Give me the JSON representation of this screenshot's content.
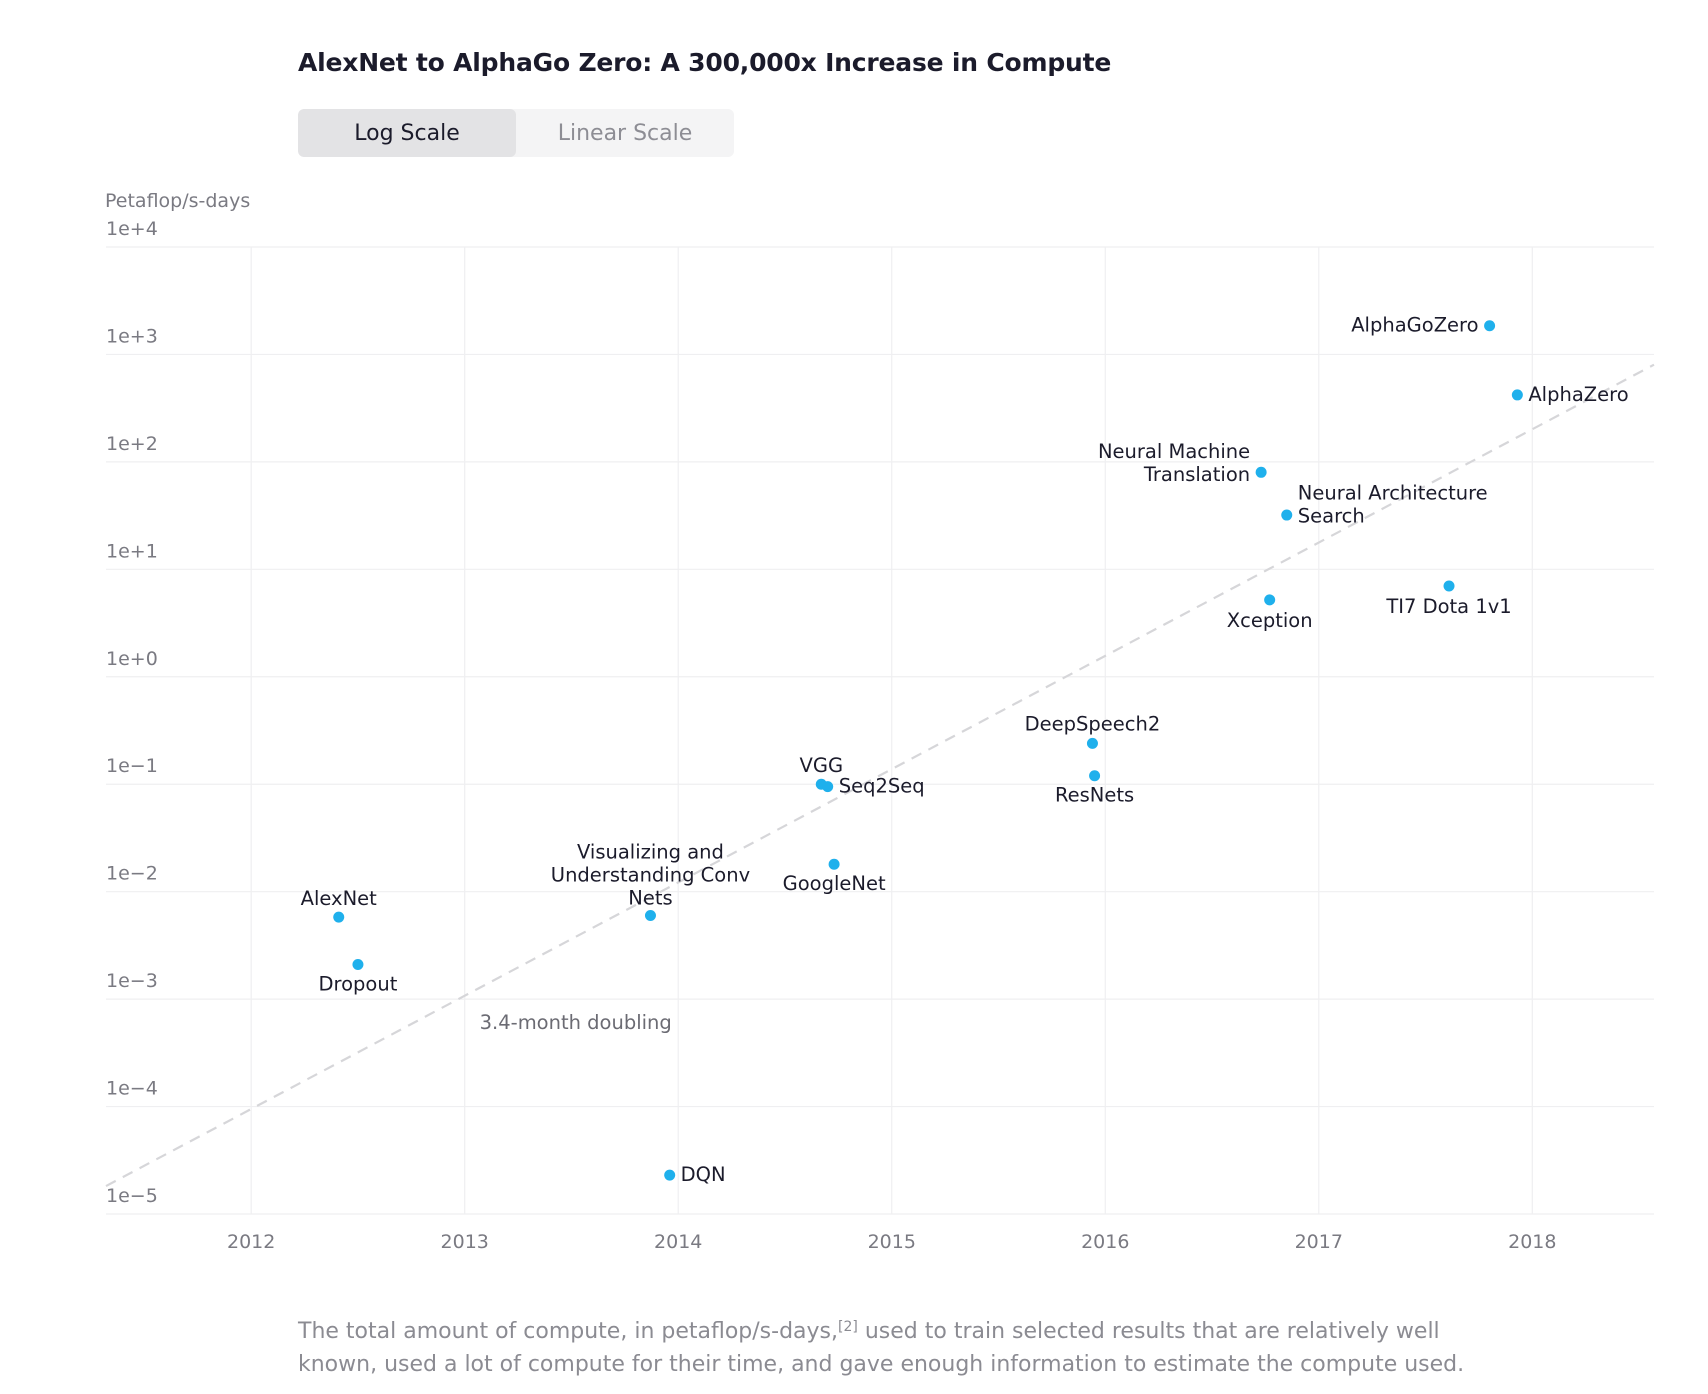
{
  "title": "AlexNet to AlphaGo Zero: A 300,000x Increase in Compute",
  "toggle": {
    "log_label": "Log Scale",
    "linear_label": "Linear Scale",
    "selected": "Log Scale"
  },
  "caption": {
    "before": "The total amount of compute, in petaflop/s-days,",
    "ref": "[2]",
    "after": " used to train selected results that are relatively well known, used a lot of compute for their time, and gave enough information to estimate the compute used."
  },
  "colors": {
    "point": "#1fb0ec",
    "grid": "#efeff1",
    "trend": "#d6d6d9"
  },
  "chart_data": {
    "type": "scatter",
    "title": "AlexNet to AlphaGo Zero: A 300,000x Increase in Compute",
    "ylabel": "Petaflop/s-days",
    "xlabel": "",
    "yscale": "log",
    "ylim": [
      1e-05,
      10000
    ],
    "xlim": [
      2011.32,
      2018.57
    ],
    "grid": true,
    "x_ticks": [
      "2012",
      "2013",
      "2014",
      "2015",
      "2016",
      "2017",
      "2018"
    ],
    "y_ticks": [
      "1e+4",
      "1e+3",
      "1e+2",
      "1e+1",
      "1e+0",
      "1e−1",
      "1e−2",
      "1e−3",
      "1e−4",
      "1e−5"
    ],
    "points": [
      {
        "name": "AlexNet",
        "x": 2012.41,
        "y": 0.0058
      },
      {
        "name": "Dropout",
        "x": 2012.5,
        "y": 0.0021
      },
      {
        "name": "DQN",
        "x": 2013.96,
        "y": 2.3e-05
      },
      {
        "name": "Visualizing and Understanding Conv Nets",
        "x": 2013.87,
        "y": 0.006
      },
      {
        "name": "VGG",
        "x": 2014.67,
        "y": 0.1
      },
      {
        "name": "Seq2Seq",
        "x": 2014.7,
        "y": 0.095
      },
      {
        "name": "GoogleNet",
        "x": 2014.73,
        "y": 0.018
      },
      {
        "name": "DeepSpeech2",
        "x": 2015.94,
        "y": 0.24
      },
      {
        "name": "ResNets",
        "x": 2015.95,
        "y": 0.12
      },
      {
        "name": "Neural Machine Translation",
        "x": 2016.73,
        "y": 80
      },
      {
        "name": "Neural Architecture Search",
        "x": 2016.85,
        "y": 32
      },
      {
        "name": "Xception",
        "x": 2016.77,
        "y": 5.2
      },
      {
        "name": "TI7 Dota 1v1",
        "x": 2017.61,
        "y": 7
      },
      {
        "name": "AlphaGoZero",
        "x": 2017.8,
        "y": 1850
      },
      {
        "name": "AlphaZero",
        "x": 2017.93,
        "y": 420
      }
    ],
    "trendline": {
      "label": "3.4-month doubling",
      "doubling_months": 3.4,
      "from": [
        2011.32,
        1.82e-05
      ],
      "to": [
        2018.57,
        803
      ]
    }
  }
}
